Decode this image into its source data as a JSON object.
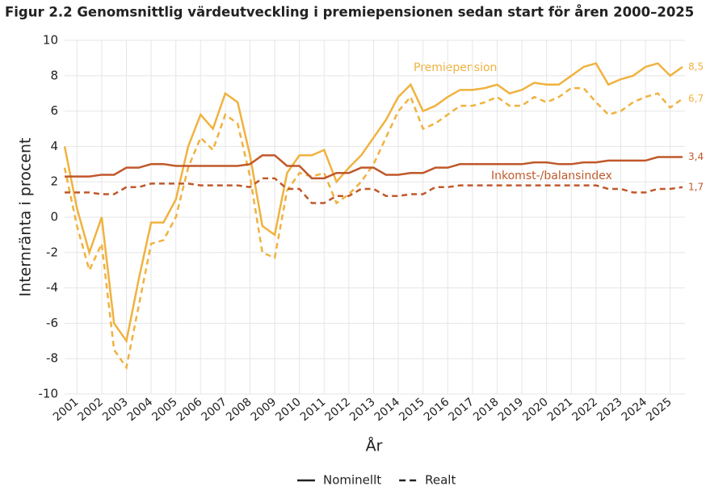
{
  "chart_data": {
    "type": "line",
    "title": "Figur 2.2 Genomsnittlig värdeutveckling i premiepensionen sedan start för åren 2000–2025",
    "xlabel": "År",
    "ylabel": "Internränta i procent",
    "annotations": [
      "Premiepension",
      "Inkomst-/balansindex"
    ],
    "legend": [
      {
        "name": "Nominellt",
        "dash": "solid"
      },
      {
        "name": "Realt",
        "dash": "dashed"
      }
    ],
    "x": [
      2000.5,
      2001,
      2001.5,
      2002,
      2002.5,
      2003,
      2003.5,
      2004,
      2004.5,
      2005,
      2005.5,
      2006,
      2006.5,
      2007,
      2007.5,
      2008,
      2008.5,
      2009,
      2009.5,
      2010,
      2010.5,
      2011,
      2011.5,
      2012,
      2012.5,
      2013,
      2013.5,
      2014,
      2014.5,
      2015,
      2015.5,
      2016,
      2016.5,
      2017,
      2017.5,
      2018,
      2018.5,
      2019,
      2019.5,
      2020,
      2020.5,
      2021,
      2021.5,
      2022,
      2022.5,
      2023,
      2023.5,
      2024,
      2024.5,
      2025,
      2025.5
    ],
    "series": [
      {
        "color": "#f0b23f",
        "dash": "solid",
        "end_label": "8,5",
        "values": [
          4.0,
          0.5,
          -2.0,
          0.0,
          -6.0,
          -7.0,
          -3.5,
          -0.3,
          -0.3,
          1.0,
          4.0,
          5.8,
          5.0,
          7.0,
          6.5,
          3.5,
          -0.5,
          -1.0,
          2.5,
          3.5,
          3.5,
          3.8,
          2.0,
          2.8,
          3.5,
          4.5,
          5.5,
          6.8,
          7.5,
          6.0,
          6.3,
          6.8,
          7.2,
          7.2,
          7.3,
          7.5,
          7.0,
          7.2,
          7.6,
          7.5,
          7.5,
          8.0,
          8.5,
          8.7,
          7.5,
          7.8,
          8.0,
          8.5,
          8.7,
          8.0,
          8.5
        ]
      },
      {
        "color": "#f0b23f",
        "dash": "dashed",
        "end_label": "6,7",
        "values": [
          2.8,
          -0.5,
          -3.0,
          -1.5,
          -7.5,
          -8.5,
          -5.0,
          -1.5,
          -1.3,
          0.0,
          2.8,
          4.5,
          3.8,
          5.8,
          5.3,
          2.3,
          -2.0,
          -2.3,
          1.5,
          2.5,
          2.3,
          2.5,
          0.8,
          1.3,
          2.0,
          3.0,
          4.5,
          6.0,
          6.8,
          5.0,
          5.3,
          5.8,
          6.3,
          6.3,
          6.5,
          6.8,
          6.3,
          6.3,
          6.8,
          6.5,
          6.8,
          7.3,
          7.3,
          6.5,
          5.8,
          6.0,
          6.5,
          6.8,
          7.0,
          6.2,
          6.7
        ]
      },
      {
        "color": "#c0582a",
        "dash": "solid",
        "end_label": "3,4",
        "values": [
          2.3,
          2.3,
          2.3,
          2.4,
          2.4,
          2.8,
          2.8,
          3.0,
          3.0,
          2.9,
          2.9,
          2.9,
          2.9,
          2.9,
          2.9,
          3.0,
          3.5,
          3.5,
          2.9,
          2.9,
          2.2,
          2.2,
          2.5,
          2.5,
          2.8,
          2.8,
          2.4,
          2.4,
          2.5,
          2.5,
          2.8,
          2.8,
          3.0,
          3.0,
          3.0,
          3.0,
          3.0,
          3.0,
          3.1,
          3.1,
          3.0,
          3.0,
          3.1,
          3.1,
          3.2,
          3.2,
          3.2,
          3.2,
          3.4,
          3.4,
          3.4
        ]
      },
      {
        "color": "#c0582a",
        "dash": "dashed",
        "end_label": "1,7",
        "values": [
          1.4,
          1.4,
          1.4,
          1.3,
          1.3,
          1.7,
          1.7,
          1.9,
          1.9,
          1.9,
          1.9,
          1.8,
          1.8,
          1.8,
          1.8,
          1.7,
          2.2,
          2.2,
          1.6,
          1.6,
          0.8,
          0.8,
          1.2,
          1.2,
          1.6,
          1.6,
          1.2,
          1.2,
          1.3,
          1.3,
          1.7,
          1.7,
          1.8,
          1.8,
          1.8,
          1.8,
          1.8,
          1.8,
          1.8,
          1.8,
          1.8,
          1.8,
          1.8,
          1.8,
          1.6,
          1.6,
          1.4,
          1.4,
          1.6,
          1.6,
          1.7
        ]
      }
    ],
    "xlim": [
      2000.5,
      2025.6
    ],
    "xticks": [
      2001,
      2002,
      2003,
      2004,
      2005,
      2006,
      2007,
      2008,
      2009,
      2010,
      2011,
      2012,
      2013,
      2014,
      2015,
      2016,
      2017,
      2018,
      2019,
      2020,
      2021,
      2022,
      2023,
      2024,
      2025
    ],
    "ylim": [
      -10,
      10
    ],
    "yticks": [
      -10,
      -8,
      -6,
      -4,
      -2,
      0,
      2,
      4,
      6,
      8,
      10
    ],
    "grid": true
  }
}
